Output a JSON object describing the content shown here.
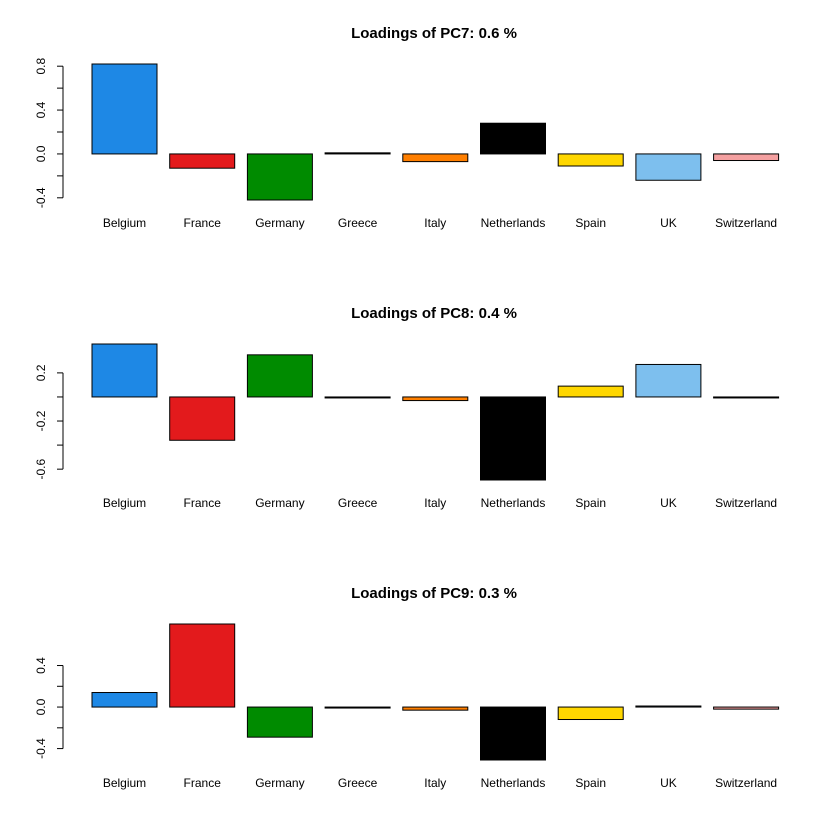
{
  "chart_data": [
    {
      "type": "bar",
      "title": "Loadings of PC7: 0.6 %",
      "categories": [
        "Belgium",
        "France",
        "Germany",
        "Greece",
        "Italy",
        "Netherlands",
        "Spain",
        "UK",
        "Switzerland"
      ],
      "values": [
        0.82,
        -0.13,
        -0.42,
        0.01,
        -0.07,
        0.28,
        -0.11,
        -0.24,
        -0.06
      ],
      "colors": [
        "#1e88e5",
        "#e31a1c",
        "#008b00",
        "#000000",
        "#ff7f00",
        "#000000",
        "#ffd700",
        "#7dbfee",
        "#f4a0a0"
      ],
      "yticks": [
        "-0.4",
        "0.0",
        "0.4",
        "0.8"
      ],
      "ylim": [
        -0.42,
        0.82
      ],
      "xlabel": "",
      "ylabel": ""
    },
    {
      "type": "bar",
      "title": "Loadings of PC8: 0.4 %",
      "categories": [
        "Belgium",
        "France",
        "Germany",
        "Greece",
        "Italy",
        "Netherlands",
        "Spain",
        "UK",
        "Switzerland"
      ],
      "values": [
        0.44,
        -0.36,
        0.35,
        0.0,
        -0.03,
        -0.69,
        0.09,
        0.27,
        0.0
      ],
      "colors": [
        "#1e88e5",
        "#e31a1c",
        "#008b00",
        "#000000",
        "#ff7f00",
        "#000000",
        "#ffd700",
        "#7dbfee",
        "#f4a0a0"
      ],
      "yticks": [
        "-0.6",
        "-0.2",
        "0.2"
      ],
      "ylim": [
        -0.69,
        0.44
      ],
      "xlabel": "",
      "ylabel": ""
    },
    {
      "type": "bar",
      "title": "Loadings of PC9: 0.3 %",
      "categories": [
        "Belgium",
        "France",
        "Germany",
        "Greece",
        "Italy",
        "Netherlands",
        "Spain",
        "UK",
        "Switzerland"
      ],
      "values": [
        0.14,
        0.8,
        -0.29,
        0.0,
        -0.03,
        -0.51,
        -0.12,
        0.01,
        -0.02
      ],
      "colors": [
        "#1e88e5",
        "#e31a1c",
        "#008b00",
        "#000000",
        "#ff7f00",
        "#000000",
        "#ffd700",
        "#7dbfee",
        "#f4a0a0"
      ],
      "yticks": [
        "-0.4",
        "0.0",
        "0.4"
      ],
      "ylim": [
        -0.51,
        0.8
      ],
      "xlabel": "",
      "ylabel": ""
    }
  ]
}
